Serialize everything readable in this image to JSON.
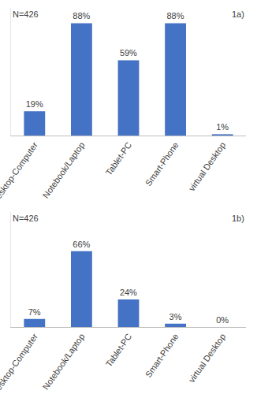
{
  "chart_data": [
    {
      "type": "bar",
      "annotations": [
        {
          "text": "N=426"
        },
        {
          "text": "1a)"
        }
      ],
      "categories": [
        "Desktop-Computer",
        "Notebook/Laptop",
        "Tablet-PC",
        "Smart-Phone",
        "virtual Desktop"
      ],
      "values": [
        19,
        88,
        59,
        88,
        1
      ],
      "value_labels": [
        "19%",
        "88%",
        "59%",
        "88%",
        "1%"
      ],
      "color": "#4472c4",
      "ylim": [
        0,
        100
      ],
      "data_labels": true,
      "tick_labels": "x"
    },
    {
      "type": "bar",
      "annotations": [
        {
          "text": "N=426"
        },
        {
          "text": "1b)"
        }
      ],
      "categories": [
        "Desktop-Computer",
        "Notebook/Laptop",
        "Tablet-PC",
        "Smart-Phone",
        "virtual Desktop"
      ],
      "values": [
        7,
        66,
        24,
        3,
        0
      ],
      "value_labels": [
        "7%",
        "66%",
        "24%",
        "3%",
        "0%"
      ],
      "color": "#4472c4",
      "ylim": [
        0,
        100
      ],
      "data_labels": true,
      "tick_labels": "x"
    }
  ]
}
